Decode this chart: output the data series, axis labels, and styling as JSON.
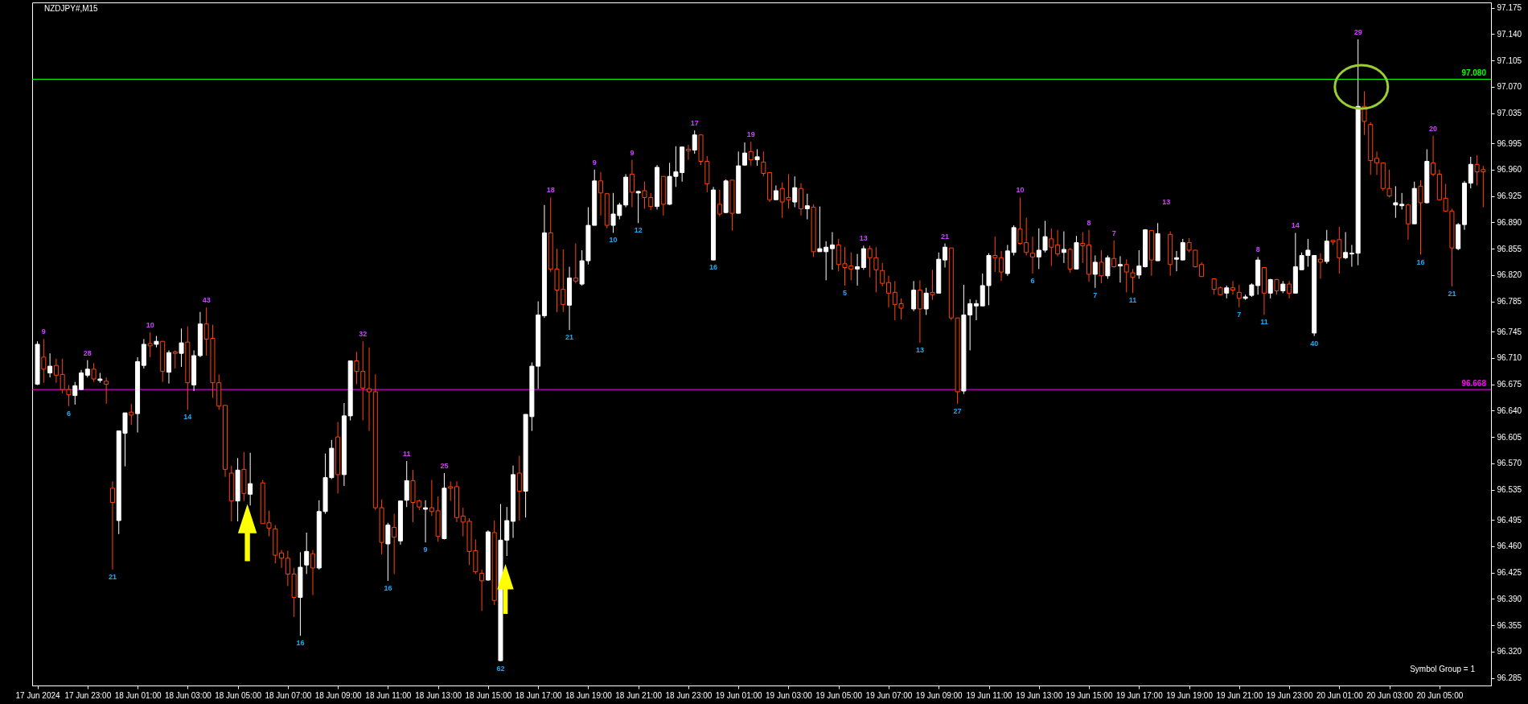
{
  "chart_data": {
    "type": "candlestick",
    "title": "NZDJPY#,M15",
    "x": [
      "2024-06-17T21:00",
      "2024-06-17T21:15",
      "2024-06-17T21:30",
      "2024-06-17T21:45",
      "2024-06-17T22:00",
      "2024-06-17T22:15",
      "2024-06-17T22:30",
      "2024-06-17T22:45",
      "2024-06-17T23:00",
      "2024-06-17T23:15",
      "2024-06-17T23:30",
      "2024-06-17T23:45",
      "2024-06-18T00:00",
      "2024-06-18T00:15",
      "2024-06-18T00:30",
      "2024-06-18T00:45",
      "2024-06-18T01:00",
      "2024-06-18T01:15",
      "2024-06-18T01:30",
      "2024-06-18T01:45",
      "2024-06-18T02:00",
      "2024-06-18T02:15",
      "2024-06-18T02:30",
      "2024-06-18T02:45",
      "2024-06-18T03:00",
      "2024-06-18T03:15",
      "2024-06-18T03:30",
      "2024-06-18T03:45",
      "2024-06-18T04:00",
      "2024-06-18T04:15",
      "2024-06-18T04:30",
      "2024-06-18T04:45",
      "2024-06-18T05:00",
      "2024-06-18T05:15",
      "2024-06-18T05:30",
      "2024-06-18T06:00",
      "2024-06-18T06:15",
      "2024-06-18T06:30",
      "2024-06-18T06:45",
      "2024-06-18T07:00",
      "2024-06-18T07:15",
      "2024-06-18T07:30",
      "2024-06-18T07:45",
      "2024-06-18T08:00",
      "2024-06-18T08:15",
      "2024-06-18T08:30",
      "2024-06-18T08:45",
      "2024-06-18T09:00",
      "2024-06-18T09:15",
      "2024-06-18T09:30",
      "2024-06-18T09:45",
      "2024-06-18T10:00",
      "2024-06-18T10:15",
      "2024-06-18T10:30",
      "2024-06-18T10:45",
      "2024-06-18T11:00",
      "2024-06-18T11:15",
      "2024-06-18T11:30",
      "2024-06-18T11:45",
      "2024-06-18T12:00",
      "2024-06-18T12:15",
      "2024-06-18T12:30",
      "2024-06-18T12:45",
      "2024-06-18T13:00",
      "2024-06-18T13:15",
      "2024-06-18T13:30",
      "2024-06-18T13:45",
      "2024-06-18T14:00",
      "2024-06-18T14:15",
      "2024-06-18T14:30",
      "2024-06-18T14:45",
      "2024-06-18T15:00",
      "2024-06-18T15:15",
      "2024-06-18T15:30",
      "2024-06-18T15:45",
      "2024-06-18T16:00",
      "2024-06-18T16:15",
      "2024-06-18T16:30",
      "2024-06-18T16:45",
      "2024-06-18T17:00",
      "2024-06-18T17:15",
      "2024-06-18T17:30",
      "2024-06-18T17:45",
      "2024-06-18T18:00",
      "2024-06-18T18:15",
      "2024-06-18T18:30",
      "2024-06-18T18:45",
      "2024-06-18T19:00",
      "2024-06-18T19:15",
      "2024-06-18T19:30",
      "2024-06-18T19:45",
      "2024-06-18T20:00",
      "2024-06-18T20:15",
      "2024-06-18T20:30",
      "2024-06-18T20:45",
      "2024-06-18T21:00",
      "2024-06-18T21:15",
      "2024-06-18T21:30",
      "2024-06-18T21:45",
      "2024-06-18T22:00",
      "2024-06-18T22:15",
      "2024-06-18T22:30",
      "2024-06-18T22:45",
      "2024-06-18T23:00",
      "2024-06-18T23:15",
      "2024-06-18T23:30",
      "2024-06-18T23:45",
      "2024-06-19T00:00",
      "2024-06-19T00:15",
      "2024-06-19T00:30",
      "2024-06-19T00:45",
      "2024-06-19T01:00",
      "2024-06-19T01:15",
      "2024-06-19T01:30",
      "2024-06-19T01:45",
      "2024-06-19T02:00",
      "2024-06-19T02:15",
      "2024-06-19T02:30",
      "2024-06-19T02:45",
      "2024-06-19T03:00",
      "2024-06-19T03:15",
      "2024-06-19T03:30",
      "2024-06-19T03:45",
      "2024-06-19T04:00",
      "2024-06-19T04:15",
      "2024-06-19T04:30",
      "2024-06-19T04:45",
      "2024-06-19T05:00",
      "2024-06-19T05:15",
      "2024-06-19T05:30",
      "2024-06-19T05:45",
      "2024-06-19T06:00",
      "2024-06-19T06:15",
      "2024-06-19T06:30",
      "2024-06-19T06:45",
      "2024-06-19T07:00",
      "2024-06-19T07:15",
      "2024-06-19T07:30",
      "2024-06-19T08:00",
      "2024-06-19T08:15",
      "2024-06-19T08:30",
      "2024-06-19T08:45",
      "2024-06-19T09:00",
      "2024-06-19T09:15",
      "2024-06-19T09:30",
      "2024-06-19T09:45",
      "2024-06-19T10:00",
      "2024-06-19T10:15",
      "2024-06-19T10:30",
      "2024-06-19T10:45",
      "2024-06-19T11:00",
      "2024-06-19T11:15",
      "2024-06-19T11:30",
      "2024-06-19T11:45",
      "2024-06-19T12:00",
      "2024-06-19T12:15",
      "2024-06-19T12:30",
      "2024-06-19T12:45",
      "2024-06-19T13:00",
      "2024-06-19T13:15",
      "2024-06-19T13:30",
      "2024-06-19T13:45",
      "2024-06-19T14:00",
      "2024-06-19T14:15",
      "2024-06-19T14:30",
      "2024-06-19T14:45",
      "2024-06-19T15:00",
      "2024-06-19T15:15",
      "2024-06-19T15:30",
      "2024-06-19T15:45",
      "2024-06-19T16:00",
      "2024-06-19T16:15",
      "2024-06-19T16:30",
      "2024-06-19T16:45",
      "2024-06-19T17:00",
      "2024-06-19T17:15",
      "2024-06-19T17:30",
      "2024-06-19T17:45",
      "2024-06-19T18:15",
      "2024-06-19T18:30",
      "2024-06-19T18:45",
      "2024-06-19T19:00",
      "2024-06-19T19:15",
      "2024-06-19T19:30",
      "2024-06-19T20:00",
      "2024-06-19T20:15",
      "2024-06-19T20:30",
      "2024-06-19T20:45",
      "2024-06-19T21:00",
      "2024-06-19T21:15",
      "2024-06-19T21:30",
      "2024-06-19T21:45",
      "2024-06-19T22:00",
      "2024-06-19T22:15",
      "2024-06-19T22:30",
      "2024-06-19T22:45",
      "2024-06-19T23:00",
      "2024-06-19T23:15",
      "2024-06-19T23:30",
      "2024-06-19T23:45",
      "2024-06-20T00:00",
      "2024-06-20T00:15",
      "2024-06-20T00:30",
      "2024-06-20T00:45",
      "2024-06-20T01:00",
      "2024-06-20T01:15",
      "2024-06-20T01:30",
      "2024-06-20T01:45",
      "2024-06-20T02:00",
      "2024-06-20T02:15",
      "2024-06-20T02:30",
      "2024-06-20T02:45",
      "2024-06-20T03:00",
      "2024-06-20T03:15",
      "2024-06-20T03:30",
      "2024-06-20T03:45",
      "2024-06-20T04:00",
      "2024-06-20T04:15",
      "2024-06-20T04:30",
      "2024-06-20T04:45",
      "2024-06-20T05:00",
      "2024-06-20T05:15",
      "2024-06-20T05:30",
      "2024-06-20T05:45",
      "2024-06-20T06:00",
      "2024-06-20T06:15",
      "2024-06-20T06:30",
      "2024-06-20T06:45"
    ],
    "ohlc": [
      [
        96.675,
        96.732,
        96.674,
        96.728
      ],
      [
        96.711,
        96.735,
        96.677,
        96.695
      ],
      [
        96.69,
        96.716,
        96.684,
        96.699
      ],
      [
        96.7,
        96.709,
        96.677,
        96.687
      ],
      [
        96.688,
        96.709,
        96.663,
        96.668
      ],
      [
        96.668,
        96.674,
        96.646,
        96.661
      ],
      [
        96.66,
        96.678,
        96.648,
        96.673
      ],
      [
        96.668,
        96.694,
        96.667,
        96.69
      ],
      [
        96.687,
        96.707,
        96.684,
        96.695
      ],
      [
        96.695,
        96.703,
        96.678,
        96.682
      ],
      [
        96.68,
        96.69,
        96.677,
        96.682
      ],
      [
        96.679,
        96.684,
        96.649,
        96.675
      ],
      [
        96.537,
        96.546,
        96.429,
        96.518
      ],
      [
        96.494,
        96.613,
        96.476,
        96.613
      ],
      [
        96.61,
        96.637,
        96.566,
        96.637
      ],
      [
        96.638,
        96.649,
        96.621,
        96.634
      ],
      [
        96.636,
        96.711,
        96.611,
        96.705
      ],
      [
        96.7,
        96.735,
        96.696,
        96.728
      ],
      [
        96.729,
        96.744,
        96.711,
        96.726
      ],
      [
        96.728,
        96.739,
        96.724,
        96.732
      ],
      [
        96.732,
        96.732,
        96.678,
        96.692
      ],
      [
        96.691,
        96.72,
        96.676,
        96.717
      ],
      [
        96.718,
        96.72,
        96.696,
        96.716
      ],
      [
        96.716,
        96.749,
        96.698,
        96.73
      ],
      [
        96.731,
        96.752,
        96.641,
        96.677
      ],
      [
        96.674,
        96.72,
        96.666,
        96.713
      ],
      [
        96.713,
        96.771,
        96.711,
        96.755
      ],
      [
        96.755,
        96.777,
        96.713,
        96.735
      ],
      [
        96.736,
        96.754,
        96.657,
        96.677
      ],
      [
        96.677,
        96.688,
        96.641,
        96.646
      ],
      [
        96.647,
        96.647,
        96.552,
        96.562
      ],
      [
        96.557,
        96.567,
        96.493,
        96.52
      ],
      [
        96.52,
        96.577,
        96.493,
        96.561
      ],
      [
        96.562,
        96.585,
        96.52,
        96.53
      ],
      [
        96.529,
        96.584,
        96.514,
        96.543
      ],
      [
        96.544,
        96.548,
        96.49,
        96.49
      ],
      [
        96.491,
        96.507,
        96.473,
        96.484
      ],
      [
        96.483,
        96.488,
        96.437,
        96.448
      ],
      [
        96.451,
        96.455,
        96.431,
        96.444
      ],
      [
        96.444,
        96.454,
        96.407,
        96.423
      ],
      [
        96.423,
        96.431,
        96.366,
        96.392
      ],
      [
        96.392,
        96.452,
        96.341,
        96.432
      ],
      [
        96.435,
        96.478,
        96.423,
        96.453
      ],
      [
        96.45,
        96.455,
        96.395,
        96.431
      ],
      [
        96.431,
        96.521,
        96.429,
        96.506
      ],
      [
        96.506,
        96.583,
        96.503,
        96.551
      ],
      [
        96.551,
        96.601,
        96.549,
        96.59
      ],
      [
        96.605,
        96.625,
        96.53,
        96.555
      ],
      [
        96.555,
        96.65,
        96.54,
        96.633
      ],
      [
        96.633,
        96.706,
        96.627,
        96.706
      ],
      [
        96.706,
        96.718,
        96.675,
        96.692
      ],
      [
        96.692,
        96.732,
        96.627,
        96.67
      ],
      [
        96.669,
        96.724,
        96.613,
        96.665
      ],
      [
        96.665,
        96.688,
        96.508,
        96.511
      ],
      [
        96.511,
        96.522,
        96.449,
        96.465
      ],
      [
        96.463,
        96.491,
        96.414,
        96.488
      ],
      [
        96.485,
        96.503,
        96.423,
        96.472
      ],
      [
        96.467,
        96.52,
        96.462,
        96.52
      ],
      [
        96.521,
        96.573,
        96.512,
        96.547
      ],
      [
        96.547,
        96.561,
        96.492,
        96.518
      ],
      [
        96.52,
        96.522,
        96.508,
        96.512
      ],
      [
        96.509,
        96.521,
        96.465,
        96.511
      ],
      [
        96.511,
        96.548,
        96.5,
        96.506
      ],
      [
        96.507,
        96.526,
        96.466,
        96.473
      ],
      [
        96.47,
        96.557,
        96.469,
        96.537
      ],
      [
        96.539,
        96.546,
        96.52,
        96.537
      ],
      [
        96.539,
        96.546,
        96.492,
        96.498
      ],
      [
        96.5,
        96.511,
        96.473,
        96.492
      ],
      [
        96.493,
        96.497,
        96.435,
        96.453
      ],
      [
        96.454,
        96.469,
        96.423,
        96.426
      ],
      [
        96.424,
        96.429,
        96.374,
        96.414
      ],
      [
        96.415,
        96.481,
        96.414,
        96.479
      ],
      [
        96.478,
        96.494,
        96.382,
        96.388
      ],
      [
        96.308,
        96.516,
        96.307,
        96.468
      ],
      [
        96.468,
        96.512,
        96.447,
        96.494
      ],
      [
        96.493,
        96.567,
        96.471,
        96.555
      ],
      [
        96.557,
        96.58,
        96.494,
        96.533
      ],
      [
        96.533,
        96.635,
        96.498,
        96.635
      ],
      [
        96.632,
        96.704,
        96.613,
        96.699
      ],
      [
        96.699,
        96.785,
        96.669,
        96.767
      ],
      [
        96.766,
        96.913,
        96.763,
        96.876
      ],
      [
        96.876,
        96.923,
        96.824,
        96.828
      ],
      [
        96.828,
        96.855,
        96.771,
        96.8
      ],
      [
        96.801,
        96.854,
        96.771,
        96.781
      ],
      [
        96.78,
        96.831,
        96.747,
        96.816
      ],
      [
        96.816,
        96.862,
        96.809,
        96.812
      ],
      [
        96.808,
        96.853,
        96.806,
        96.839
      ],
      [
        96.839,
        96.91,
        96.834,
        96.886
      ],
      [
        96.886,
        96.96,
        96.886,
        96.945
      ],
      [
        96.945,
        96.957,
        96.899,
        96.929
      ],
      [
        96.928,
        96.929,
        96.882,
        96.886
      ],
      [
        96.886,
        96.929,
        96.876,
        96.901
      ],
      [
        96.899,
        96.916,
        96.894,
        96.913
      ],
      [
        96.913,
        96.954,
        96.91,
        96.95
      ],
      [
        96.954,
        96.973,
        96.91,
        96.93
      ],
      [
        96.929,
        96.932,
        96.889,
        96.931
      ],
      [
        96.932,
        96.944,
        96.908,
        96.923
      ],
      [
        96.923,
        96.929,
        96.906,
        96.911
      ],
      [
        96.911,
        96.966,
        96.907,
        96.963
      ],
      [
        96.951,
        96.951,
        96.899,
        96.914
      ],
      [
        96.914,
        96.969,
        96.913,
        96.951
      ],
      [
        96.951,
        96.991,
        96.937,
        96.957
      ],
      [
        96.956,
        96.99,
        96.944,
        96.99
      ],
      [
        96.987,
        96.993,
        96.973,
        96.985
      ],
      [
        96.986,
        97.012,
        96.981,
        97.006
      ],
      [
        97.006,
        97.007,
        96.966,
        96.971
      ],
      [
        96.971,
        96.978,
        96.93,
        96.941
      ],
      [
        96.84,
        96.937,
        96.84,
        96.933
      ],
      [
        96.914,
        96.933,
        96.898,
        96.901
      ],
      [
        96.903,
        96.947,
        96.902,
        96.945
      ],
      [
        96.946,
        96.946,
        96.879,
        96.902
      ],
      [
        96.902,
        96.984,
        96.902,
        96.965
      ],
      [
        96.966,
        96.996,
        96.965,
        96.982
      ],
      [
        96.984,
        96.997,
        96.965,
        96.973
      ],
      [
        96.973,
        96.987,
        96.965,
        96.977
      ],
      [
        96.97,
        96.984,
        96.951,
        96.955
      ],
      [
        96.956,
        96.956,
        96.917,
        96.92
      ],
      [
        96.92,
        96.939,
        96.92,
        96.932
      ],
      [
        96.935,
        96.943,
        96.896,
        96.917
      ],
      [
        96.923,
        96.954,
        96.908,
        96.92
      ],
      [
        96.917,
        96.951,
        96.91,
        96.936
      ],
      [
        96.935,
        96.942,
        96.899,
        96.908
      ],
      [
        96.908,
        96.928,
        96.894,
        96.912
      ],
      [
        96.91,
        96.914,
        96.844,
        96.851
      ],
      [
        96.851,
        96.911,
        96.851,
        96.855
      ],
      [
        96.851,
        96.865,
        96.813,
        96.857
      ],
      [
        96.855,
        96.877,
        96.827,
        96.86
      ],
      [
        96.86,
        96.868,
        96.825,
        96.834
      ],
      [
        96.835,
        96.857,
        96.806,
        96.83
      ],
      [
        96.832,
        96.85,
        96.813,
        96.828
      ],
      [
        96.828,
        96.848,
        96.806,
        96.831
      ],
      [
        96.83,
        96.859,
        96.827,
        96.855
      ],
      [
        96.855,
        96.859,
        96.817,
        96.843
      ],
      [
        96.843,
        96.857,
        96.797,
        96.827
      ],
      [
        96.826,
        96.836,
        96.805,
        96.809
      ],
      [
        96.81,
        96.819,
        96.777,
        96.796
      ],
      [
        96.797,
        96.812,
        96.76,
        96.781
      ],
      [
        96.782,
        96.789,
        96.761,
        96.776
      ],
      [
        96.775,
        96.812,
        96.772,
        96.8
      ],
      [
        96.8,
        96.813,
        96.73,
        96.775
      ],
      [
        96.775,
        96.803,
        96.767,
        96.796
      ],
      [
        96.797,
        96.827,
        96.787,
        96.794
      ],
      [
        96.796,
        96.85,
        96.796,
        96.841
      ],
      [
        96.84,
        96.862,
        96.83,
        96.857
      ],
      [
        96.856,
        96.856,
        96.76,
        96.763
      ],
      [
        96.763,
        96.763,
        96.649,
        96.665
      ],
      [
        96.666,
        96.807,
        96.662,
        96.767
      ],
      [
        96.767,
        96.788,
        96.72,
        96.782
      ],
      [
        96.779,
        96.787,
        96.76,
        96.782
      ],
      [
        96.779,
        96.822,
        96.779,
        96.806
      ],
      [
        96.806,
        96.849,
        96.78,
        96.846
      ],
      [
        96.846,
        96.871,
        96.824,
        96.843
      ],
      [
        96.843,
        96.852,
        96.812,
        96.824
      ],
      [
        96.822,
        96.86,
        96.819,
        96.852
      ],
      [
        96.85,
        96.886,
        96.846,
        96.883
      ],
      [
        96.881,
        96.923,
        96.86,
        96.862
      ],
      [
        96.863,
        96.896,
        96.846,
        96.85
      ],
      [
        96.849,
        96.871,
        96.822,
        96.844
      ],
      [
        96.844,
        96.882,
        96.828,
        96.853
      ],
      [
        96.853,
        96.892,
        96.85,
        96.871
      ],
      [
        96.868,
        96.882,
        96.832,
        96.857
      ],
      [
        96.86,
        96.88,
        96.845,
        96.848
      ],
      [
        96.85,
        96.878,
        96.836,
        96.854
      ],
      [
        96.854,
        96.856,
        96.823,
        96.828
      ],
      [
        96.828,
        96.872,
        96.828,
        96.863
      ],
      [
        96.862,
        96.877,
        96.836,
        96.859
      ],
      [
        96.86,
        96.88,
        96.811,
        96.821
      ],
      [
        96.821,
        96.846,
        96.803,
        96.837
      ],
      [
        96.837,
        96.853,
        96.809,
        96.819
      ],
      [
        96.819,
        96.846,
        96.815,
        96.843
      ],
      [
        96.842,
        96.866,
        96.83,
        96.831
      ],
      [
        96.832,
        96.845,
        96.81,
        96.834
      ],
      [
        96.834,
        96.841,
        96.797,
        96.824
      ],
      [
        96.823,
        96.828,
        96.796,
        96.817
      ],
      [
        96.82,
        96.853,
        96.815,
        96.832
      ],
      [
        96.831,
        96.881,
        96.83,
        96.88
      ],
      [
        96.879,
        96.88,
        96.819,
        96.84
      ],
      [
        96.839,
        96.889,
        96.839,
        96.875
      ],
      [
        96.874,
        96.878,
        96.819,
        96.834
      ],
      [
        96.841,
        96.852,
        96.825,
        96.843
      ],
      [
        96.84,
        96.868,
        96.84,
        96.863
      ],
      [
        96.863,
        96.869,
        96.85,
        96.853
      ],
      [
        96.853,
        96.853,
        96.83,
        96.831
      ],
      [
        96.834,
        96.837,
        96.818,
        96.818
      ],
      [
        96.815,
        96.815,
        96.794,
        96.801
      ],
      [
        96.803,
        96.805,
        96.793,
        96.794
      ],
      [
        96.796,
        96.806,
        96.789,
        96.803
      ],
      [
        96.803,
        96.812,
        96.794,
        96.8
      ],
      [
        96.797,
        96.807,
        96.777,
        96.789
      ],
      [
        96.789,
        96.794,
        96.787,
        96.791
      ],
      [
        96.793,
        96.809,
        96.791,
        96.807
      ],
      [
        96.806,
        96.844,
        96.794,
        96.84
      ],
      [
        96.83,
        96.83,
        96.767,
        96.796
      ],
      [
        96.796,
        96.815,
        96.789,
        96.814
      ],
      [
        96.814,
        96.815,
        96.794,
        96.799
      ],
      [
        96.799,
        96.812,
        96.796,
        96.808
      ],
      [
        96.808,
        96.812,
        96.789,
        96.796
      ],
      [
        96.796,
        96.876,
        96.796,
        96.831
      ],
      [
        96.827,
        96.85,
        96.827,
        96.846
      ],
      [
        96.846,
        96.868,
        96.831,
        96.853
      ],
      [
        96.743,
        96.846,
        96.739,
        96.846
      ],
      [
        96.841,
        96.849,
        96.815,
        96.837
      ],
      [
        96.838,
        96.88,
        96.835,
        96.865
      ],
      [
        96.866,
        96.866,
        96.86,
        96.864
      ],
      [
        96.867,
        96.884,
        96.822,
        96.843
      ],
      [
        96.843,
        96.877,
        96.841,
        96.85
      ],
      [
        96.848,
        96.86,
        96.831,
        96.849
      ],
      [
        96.849,
        97.133,
        96.833,
        97.044
      ],
      [
        97.044,
        97.064,
        97.006,
        97.024
      ],
      [
        97.02,
        97.023,
        96.953,
        96.972
      ],
      [
        96.975,
        96.984,
        96.953,
        96.969
      ],
      [
        96.969,
        96.969,
        96.932,
        96.935
      ],
      [
        96.935,
        96.96,
        96.923,
        96.925
      ],
      [
        96.913,
        96.938,
        96.896,
        96.916
      ],
      [
        96.912,
        96.929,
        96.907,
        96.914
      ],
      [
        96.913,
        96.915,
        96.867,
        96.888
      ],
      [
        96.888,
        96.944,
        96.888,
        96.935
      ],
      [
        96.938,
        96.946,
        96.847,
        96.916
      ],
      [
        96.916,
        96.987,
        96.915,
        96.971
      ],
      [
        96.969,
        97.005,
        96.951,
        96.954
      ],
      [
        96.954,
        96.96,
        96.919,
        96.92
      ],
      [
        96.922,
        96.941,
        96.904,
        96.905
      ],
      [
        96.905,
        96.908,
        96.805,
        96.856
      ],
      [
        96.855,
        96.889,
        96.853,
        96.887
      ],
      [
        96.887,
        96.945,
        96.88,
        96.942
      ],
      [
        96.942,
        96.977,
        96.935,
        96.967
      ],
      [
        96.967,
        96.979,
        96.939,
        96.957
      ],
      [
        96.96,
        96.965,
        96.91,
        96.957
      ]
    ],
    "colors": [
      "#ffffff",
      "#ff4500",
      "#ffffff",
      "#ff4500",
      "#ff4500",
      "#ff4500",
      "#ffffff",
      "#ffffff",
      "#ffffff",
      "#ff4500",
      "#ffffff",
      "#ff4500",
      "#ff4500",
      "#ffffff",
      "#ffffff",
      "#ff4500",
      "#ffffff",
      "#ffffff",
      "#ff4500",
      "#ffffff",
      "#ff4500",
      "#ffffff",
      "#ff4500",
      "#ffffff",
      "#ff4500",
      "#ffffff",
      "#ffffff",
      "#ff4500",
      "#ff4500",
      "#ff4500",
      "#ff4500",
      "#ff4500",
      "#ffffff",
      "#ff4500",
      "#ffffff",
      "#ff4500",
      "#ff4500",
      "#ff4500",
      "#ff4500",
      "#ff4500",
      "#ff4500",
      "#ffffff",
      "#ffffff",
      "#ff4500",
      "#ffffff",
      "#ffffff",
      "#ffffff",
      "#ff4500",
      "#ffffff",
      "#ffffff",
      "#ff4500",
      "#ff4500",
      "#ff4500",
      "#ff4500",
      "#ff4500",
      "#ffffff",
      "#ff4500",
      "#ffffff",
      "#ffffff",
      "#ff4500",
      "#ff4500",
      "#ffffff",
      "#ff4500",
      "#ff4500",
      "#ffffff",
      "#ff4500",
      "#ff4500",
      "#ff4500",
      "#ff4500",
      "#ff4500",
      "#ff4500",
      "#ffffff",
      "#ff4500",
      "#ffffff",
      "#ffffff",
      "#ffffff",
      "#ff4500",
      "#ffffff",
      "#ffffff",
      "#ffffff",
      "#ffffff",
      "#ff4500",
      "#ff4500",
      "#ff4500",
      "#ffffff",
      "#ff4500",
      "#ffffff",
      "#ffffff",
      "#ffffff",
      "#ff4500",
      "#ff4500",
      "#ffffff",
      "#ffffff",
      "#ffffff",
      "#ff4500",
      "#ffffff",
      "#ff4500",
      "#ff4500",
      "#ffffff",
      "#ff4500",
      "#ffffff",
      "#ffffff",
      "#ffffff",
      "#ff4500",
      "#ffffff",
      "#ff4500",
      "#ff4500",
      "#ffffff",
      "#ff4500",
      "#ffffff",
      "#ff4500",
      "#ffffff",
      "#ffffff",
      "#ff4500",
      "#ffffff",
      "#ff4500",
      "#ff4500",
      "#ffffff",
      "#ff4500",
      "#ff4500",
      "#ffffff",
      "#ff4500",
      "#ffffff",
      "#ff4500",
      "#ffffff",
      "#ffffff",
      "#ffffff",
      "#ff4500",
      "#ff4500",
      "#ff4500",
      "#ffffff",
      "#ffffff",
      "#ff4500",
      "#ff4500",
      "#ff4500",
      "#ff4500",
      "#ff4500",
      "#ff4500",
      "#ffffff",
      "#ff4500",
      "#ffffff",
      "#ff4500",
      "#ffffff",
      "#ffffff",
      "#ff4500",
      "#ff4500",
      "#ffffff",
      "#ffffff",
      "#ffffff",
      "#ffffff",
      "#ffffff",
      "#ff4500",
      "#ff4500",
      "#ffffff",
      "#ffffff",
      "#ff4500",
      "#ff4500",
      "#ff4500",
      "#ffffff",
      "#ffffff",
      "#ff4500",
      "#ff4500",
      "#ffffff",
      "#ff4500",
      "#ffffff",
      "#ff4500",
      "#ff4500",
      "#ffffff",
      "#ff4500",
      "#ffffff",
      "#ff4500",
      "#ffffff",
      "#ff4500",
      "#ff4500",
      "#ffffff",
      "#ffffff",
      "#ff4500",
      "#ffffff",
      "#ff4500",
      "#ffffff",
      "#ffffff",
      "#ff4500",
      "#ff4500",
      "#ff4500",
      "#ff4500",
      "#ff4500",
      "#ffffff",
      "#ff4500",
      "#ff4500",
      "#ffffff",
      "#ffffff",
      "#ffffff",
      "#ff4500",
      "#ffffff",
      "#ff4500",
      "#ffffff",
      "#ff4500",
      "#ffffff",
      "#ffffff",
      "#ffffff",
      "#ffffff",
      "#ff4500",
      "#ffffff",
      "#ff4500",
      "#ff4500",
      "#ffffff",
      "#ffffff",
      "#ffffff",
      "#ff4500",
      "#ff4500",
      "#ff4500",
      "#ff4500",
      "#ff4500",
      "#ffffff",
      "#ffffff",
      "#ff4500",
      "#ffffff",
      "#ff4500",
      "#ffffff",
      "#ff4500",
      "#ff4500",
      "#ff4500",
      "#ff4500",
      "#ffffff",
      "#ffffff",
      "#ffffff",
      "#ff4500",
      "#ff4500"
    ],
    "xlim": [
      "2024-06-17T20:57",
      "2024-06-20T06:54"
    ],
    "ylim": [
      96.275,
      97.182
    ],
    "xticks": [
      {
        "value": "2024-06-17T21:00",
        "label": "17 Jun 2024"
      },
      {
        "value": "2024-06-17T23:00",
        "label": "17 Jun 23:00"
      },
      {
        "value": "2024-06-18T01:00",
        "label": "18 Jun 01:00"
      },
      {
        "value": "2024-06-18T03:00",
        "label": "18 Jun 03:00"
      },
      {
        "value": "2024-06-18T05:00",
        "label": "18 Jun 05:00"
      },
      {
        "value": "2024-06-18T07:00",
        "label": "18 Jun 07:00"
      },
      {
        "value": "2024-06-18T09:00",
        "label": "18 Jun 09:00"
      },
      {
        "value": "2024-06-18T11:00",
        "label": "18 Jun 11:00"
      },
      {
        "value": "2024-06-18T13:00",
        "label": "18 Jun 13:00"
      },
      {
        "value": "2024-06-18T15:00",
        "label": "18 Jun 15:00"
      },
      {
        "value": "2024-06-18T17:00",
        "label": "18 Jun 17:00"
      },
      {
        "value": "2024-06-18T19:00",
        "label": "18 Jun 19:00"
      },
      {
        "value": "2024-06-18T21:00",
        "label": "18 Jun 21:00"
      },
      {
        "value": "2024-06-18T23:00",
        "label": "18 Jun 23:00"
      },
      {
        "value": "2024-06-19T01:00",
        "label": "19 Jun 01:00"
      },
      {
        "value": "2024-06-19T03:00",
        "label": "19 Jun 03:00"
      },
      {
        "value": "2024-06-19T05:00",
        "label": "19 Jun 05:00"
      },
      {
        "value": "2024-06-19T07:00",
        "label": "19 Jun 07:00"
      },
      {
        "value": "2024-06-19T09:00",
        "label": "19 Jun 09:00"
      },
      {
        "value": "2024-06-19T11:00",
        "label": "19 Jun 11:00"
      },
      {
        "value": "2024-06-19T13:00",
        "label": "19 Jun 13:00"
      },
      {
        "value": "2024-06-19T15:00",
        "label": "19 Jun 15:00"
      },
      {
        "value": "2024-06-19T17:00",
        "label": "19 Jun 17:00"
      },
      {
        "value": "2024-06-19T19:00",
        "label": "19 Jun 19:00"
      },
      {
        "value": "2024-06-19T21:00",
        "label": "19 Jun 21:00"
      },
      {
        "value": "2024-06-19T23:00",
        "label": "19 Jun 23:00"
      },
      {
        "value": "2024-06-20T01:00",
        "label": "20 Jun 01:00"
      },
      {
        "value": "2024-06-20T03:00",
        "label": "20 Jun 03:00"
      },
      {
        "value": "2024-06-20T05:00",
        "label": "20 Jun 05:00"
      }
    ],
    "yticks": [
      97.175,
      {
        "value": 97.14,
        "label": "97.140"
      },
      97.105,
      {
        "value": 97.07,
        "label": "97.070"
      },
      97.035,
      96.995,
      {
        "value": 96.96,
        "label": "96.960"
      },
      96.925,
      {
        "value": 96.89,
        "label": "96.890"
      },
      96.855,
      {
        "value": 96.82,
        "label": "96.820"
      },
      96.785,
      96.745,
      {
        "value": 96.71,
        "label": "96.710"
      },
      96.675,
      {
        "value": 96.64,
        "label": "96.640"
      },
      96.605,
      {
        "value": 96.57,
        "label": "96.570"
      },
      96.535,
      96.495,
      {
        "value": 96.46,
        "label": "96.460"
      },
      96.425,
      {
        "value": 96.39,
        "label": "96.390"
      },
      96.355,
      {
        "value": 96.32,
        "label": "96.320"
      },
      96.285
    ],
    "ref_lines": [
      {
        "axis": "y",
        "value": 97.08,
        "label": "97.080",
        "color": "#00ff00"
      },
      {
        "axis": "y",
        "value": 96.668,
        "label": "96.668",
        "color": "#ff00ff"
      }
    ],
    "annotations": [
      {
        "text": "9",
        "x": "2024-06-17T21:15",
        "y": 96.735
      },
      {
        "text": "28",
        "x": "2024-06-17T23:00",
        "y": 96.707
      },
      {
        "text": "10",
        "x": "2024-06-18T01:30",
        "y": 96.744
      },
      {
        "text": "43",
        "x": "2024-06-18T03:45",
        "y": 96.777
      },
      {
        "text": "32",
        "x": "2024-06-18T10:00",
        "y": 96.732
      },
      {
        "text": "11",
        "x": "2024-06-18T11:45",
        "y": 96.573
      },
      {
        "text": "25",
        "x": "2024-06-18T13:15",
        "y": 96.557
      },
      {
        "text": "18",
        "x": "2024-06-18T17:30",
        "y": 96.923
      },
      {
        "text": "9",
        "x": "2024-06-18T19:15",
        "y": 96.96
      },
      {
        "text": "9",
        "x": "2024-06-18T20:45",
        "y": 96.973
      },
      {
        "text": "17",
        "x": "2024-06-18T23:15",
        "y": 97.012
      },
      {
        "text": "19",
        "x": "2024-06-19T01:30",
        "y": 96.997
      },
      {
        "text": "13",
        "x": "2024-06-19T06:00",
        "y": 96.859
      },
      {
        "text": "21",
        "x": "2024-06-19T09:15",
        "y": 96.862
      },
      {
        "text": "10",
        "x": "2024-06-19T12:15",
        "y": 96.923
      },
      {
        "text": "8",
        "x": "2024-06-19T15:00",
        "y": 96.88
      },
      {
        "text": "7",
        "x": "2024-06-19T16:00",
        "y": 96.866
      },
      {
        "text": "8",
        "x": "2024-06-19T21:45",
        "y": 96.844
      },
      {
        "text": "14",
        "x": "2024-06-19T23:15",
        "y": 96.876
      },
      {
        "text": "29",
        "x": "2024-06-20T01:45",
        "y": 97.133
      },
      {
        "text": "20",
        "x": "2024-06-20T04:45",
        "y": 97.005
      },
      {
        "text": "6",
        "x": "2024-06-17T22:15",
        "y": 96.646
      },
      {
        "text": "21",
        "x": "2024-06-18T00:00",
        "y": 96.429
      },
      {
        "text": "14",
        "x": "2024-06-18T03:00",
        "y": 96.641
      },
      {
        "text": "16",
        "x": "2024-06-18T07:30",
        "y": 96.341
      },
      {
        "text": "16",
        "x": "2024-06-18T11:00",
        "y": 96.414
      },
      {
        "text": "9",
        "x": "2024-06-18T12:30",
        "y": 96.465
      },
      {
        "text": "62",
        "x": "2024-06-18T15:30",
        "y": 96.307
      },
      {
        "text": "21",
        "x": "2024-06-18T18:15",
        "y": 96.747
      },
      {
        "text": "10",
        "x": "2024-06-18T20:00",
        "y": 96.876
      },
      {
        "text": "12",
        "x": "2024-06-18T21:00",
        "y": 96.889
      },
      {
        "text": "16",
        "x": "2024-06-19T00:00",
        "y": 96.84
      },
      {
        "text": "5",
        "x": "2024-06-19T05:15",
        "y": 96.806
      },
      {
        "text": "13",
        "x": "2024-06-19T08:15",
        "y": 96.73
      },
      {
        "text": "27",
        "x": "2024-06-19T09:45",
        "y": 96.649
      },
      {
        "text": "6",
        "x": "2024-06-19T12:45",
        "y": 96.822
      },
      {
        "text": "7",
        "x": "2024-06-19T15:15",
        "y": 96.803
      },
      {
        "text": "11",
        "x": "2024-06-19T16:45",
        "y": 96.796
      },
      {
        "text": "7",
        "x": "2024-06-19T21:00",
        "y": 96.777
      },
      {
        "text": "11",
        "x": "2024-06-19T22:00",
        "y": 96.767
      },
      {
        "text": "40",
        "x": "2024-06-20T00:00",
        "y": 96.739
      },
      {
        "text": "16",
        "x": "2024-06-20T04:15",
        "y": 96.847
      },
      {
        "text": "21",
        "x": "2024-06-20T05:30",
        "y": 96.805
      },
      "13",
      "Symbol Group = 1"
    ]
  }
}
